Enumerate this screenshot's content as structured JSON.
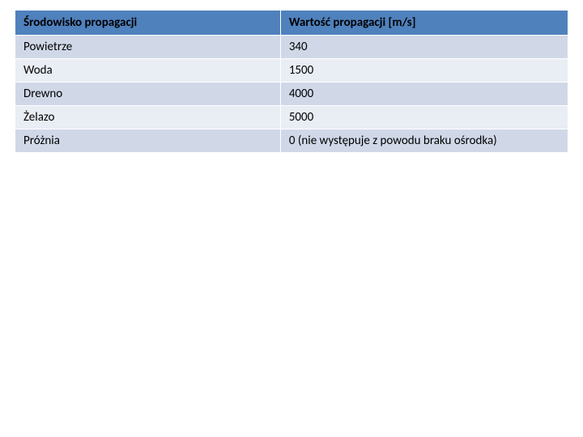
{
  "table": {
    "header_bg": "#4f81bd",
    "header_fg": "#000000",
    "row_even_bg": "#d0d8e8",
    "row_odd_bg": "#e9edf4",
    "row_fg": "#000000",
    "border_color": "#ffffff",
    "font_family": "Calibri, Arial, sans-serif",
    "header_fontsize": 15,
    "cell_fontsize": 15,
    "columns": [
      {
        "key": "env",
        "label": "Środowisko propagacji",
        "width_pct": 48
      },
      {
        "key": "val",
        "label": "Wartość propagacji [m/s]",
        "width_pct": 52
      }
    ],
    "rows": [
      {
        "env": "Powietrze",
        "val": "340"
      },
      {
        "env": "Woda",
        "val": "1500"
      },
      {
        "env": "Drewno",
        "val": "4000"
      },
      {
        "env": "Żelazo",
        "val": "5000"
      },
      {
        "env": "Próżnia",
        "val": "0 (nie występuje z powodu braku ośrodka)"
      }
    ]
  }
}
